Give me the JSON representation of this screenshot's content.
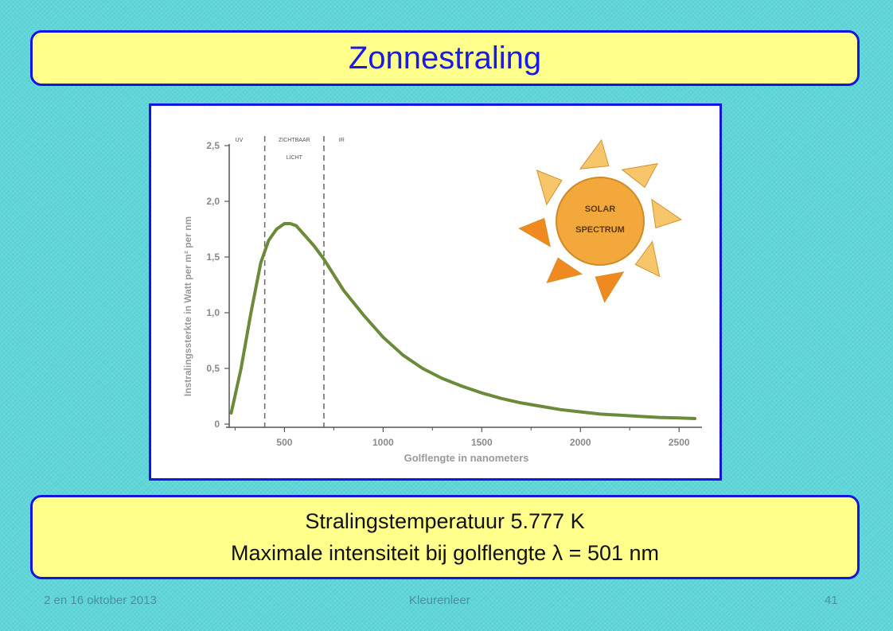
{
  "slide": {
    "title": "Zonnestraling",
    "info_lines": [
      "Stralingstemperatuur 5.777 K",
      "Maximale intensiteit bij golflengte λ = 501 nm"
    ],
    "footer_left": "2 en 16 oktober 2013",
    "footer_center": "Kleurenleer",
    "footer_right": "41"
  },
  "colors": {
    "title_text": "#1a1ae6",
    "frame_border": "#1515e0",
    "box_fill": "#ffff8c",
    "background": "#5fd6d8",
    "curve": "#6b8a3a",
    "sun_body": "#f2a83a",
    "ray_light": "#f7c66a",
    "ray_dark": "#f08a20"
  },
  "chart_data": {
    "type": "line",
    "ylabel": "Instralingssterkte in Watt per m² per nm",
    "xlabel": "Golflengte in nanometers",
    "xlim": [
      220,
      2600
    ],
    "ylim": [
      0,
      2.5
    ],
    "x_ticks": [
      500,
      1000,
      1500,
      2000,
      2500
    ],
    "x_tick_labels": [
      "500",
      "1000",
      "1500",
      "2000",
      "2500"
    ],
    "y_ticks": [
      0,
      0.5,
      1.0,
      1.5,
      2.0,
      2.5
    ],
    "y_tick_labels": [
      "0",
      "0,5",
      "1,0",
      "1,5",
      "2,0",
      "2,5"
    ],
    "regions": [
      {
        "label": "UV",
        "x_label": 270
      },
      {
        "label": "ZICHTBAAR",
        "sublabel": "LICHT",
        "x_label": 550
      },
      {
        "label": "IR",
        "x_label": 790
      }
    ],
    "boundaries": [
      400,
      700
    ],
    "series": [
      {
        "x": [
          230,
          280,
          330,
          380,
          420,
          460,
          500,
          530,
          560,
          600,
          650,
          700,
          800,
          900,
          1000,
          1100,
          1200,
          1300,
          1400,
          1500,
          1600,
          1700,
          1800,
          1900,
          2000,
          2100,
          2200,
          2300,
          2400,
          2500,
          2580
        ],
        "y": [
          0.1,
          0.5,
          1.0,
          1.45,
          1.65,
          1.75,
          1.8,
          1.8,
          1.78,
          1.7,
          1.6,
          1.48,
          1.2,
          0.98,
          0.78,
          0.62,
          0.5,
          0.41,
          0.34,
          0.28,
          0.23,
          0.19,
          0.16,
          0.13,
          0.11,
          0.09,
          0.08,
          0.07,
          0.06,
          0.055,
          0.05
        ]
      }
    ],
    "grid": false,
    "annotation": {
      "line1": "SOLAR",
      "line2": "SPECTRUM"
    }
  }
}
